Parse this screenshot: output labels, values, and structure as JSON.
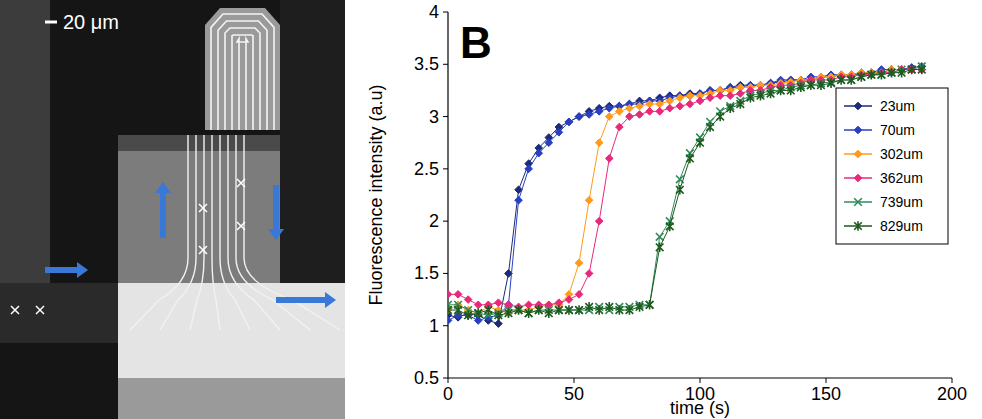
{
  "image_panel": {
    "scale_bar": "20 μm"
  },
  "chart_data": {
    "type": "line",
    "title": "B",
    "x_label": "time (s)",
    "y_label": "Fluorescence intensity (a.u)",
    "x": [
      0,
      4,
      8,
      12,
      16,
      20,
      24,
      28,
      32,
      36,
      40,
      44,
      48,
      52,
      56,
      60,
      64,
      68,
      72,
      76,
      80,
      84,
      88,
      92,
      96,
      100,
      104,
      108,
      112,
      116,
      120,
      124,
      128,
      132,
      136,
      140,
      144,
      148,
      152,
      156,
      160,
      164,
      168,
      172,
      176,
      180,
      184,
      188
    ],
    "xlim": [
      0,
      200
    ],
    "xticks": [
      0,
      50,
      100,
      150,
      200
    ],
    "ylim": [
      0.5,
      4
    ],
    "yticks": [
      0.5,
      1,
      1.5,
      2,
      2.5,
      3,
      3.5,
      4
    ],
    "grid": false,
    "legend": "upper right",
    "series": [
      {
        "name": "23um",
        "color": "#1b2a7a",
        "marker": "diamond",
        "line_style": "solid",
        "values": [
          1.1,
          1.08,
          1.12,
          1.1,
          1.05,
          1.02,
          1.5,
          2.3,
          2.55,
          2.7,
          2.8,
          2.9,
          2.95,
          3,
          3.05,
          3.08,
          3.1,
          3.1,
          3.12,
          3.15,
          3.15,
          3.18,
          3.2,
          3.2,
          3.22,
          3.22,
          3.25,
          3.25,
          3.28,
          3.3,
          3.3,
          3.3,
          3.32,
          3.33,
          3.35,
          3.35,
          3.35,
          3.38,
          3.38,
          3.4,
          3.4,
          3.4,
          3.42,
          3.42,
          3.45,
          3.45,
          3.45,
          3.45
        ]
      },
      {
        "name": "70um",
        "color": "#2840c0",
        "marker": "diamond",
        "line_style": "solid",
        "values": [
          1.05,
          1.1,
          1.1,
          1.05,
          1.08,
          1.1,
          1.2,
          2.2,
          2.5,
          2.65,
          2.75,
          2.85,
          2.95,
          3,
          3.02,
          3.05,
          3.08,
          3.1,
          3.12,
          3.12,
          3.15,
          3.15,
          3.18,
          3.2,
          3.2,
          3.22,
          3.25,
          3.25,
          3.28,
          3.28,
          3.3,
          3.3,
          3.32,
          3.35,
          3.35,
          3.35,
          3.38,
          3.38,
          3.4,
          3.4,
          3.4,
          3.42,
          3.42,
          3.45,
          3.45,
          3.45,
          3.47,
          3.48
        ]
      },
      {
        "name": "302um",
        "color": "#ff9a1a",
        "marker": "diamond",
        "line_style": "solid",
        "values": [
          1.15,
          1.2,
          1.15,
          1.12,
          1.18,
          1.15,
          1.12,
          1.15,
          1.15,
          1.18,
          1.2,
          1.2,
          1.3,
          1.6,
          2.2,
          2.75,
          3,
          3.05,
          3.08,
          3.1,
          3.12,
          3.12,
          3.15,
          3.18,
          3.2,
          3.2,
          3.22,
          3.25,
          3.25,
          3.28,
          3.28,
          3.3,
          3.3,
          3.32,
          3.33,
          3.35,
          3.35,
          3.38,
          3.38,
          3.4,
          3.4,
          3.42,
          3.42,
          3.42,
          3.45,
          3.45,
          3.45,
          3.45
        ]
      },
      {
        "name": "362um",
        "color": "#e8287a",
        "marker": "diamond",
        "line_style": "solid",
        "values": [
          1.3,
          1.3,
          1.25,
          1.2,
          1.2,
          1.22,
          1.2,
          1.18,
          1.2,
          1.2,
          1.2,
          1.22,
          1.25,
          1.3,
          1.5,
          2,
          2.6,
          2.9,
          3,
          3.02,
          3.05,
          3.05,
          3.08,
          3.1,
          3.12,
          3.15,
          3.18,
          3.2,
          3.2,
          3.22,
          3.25,
          3.25,
          3.28,
          3.3,
          3.3,
          3.32,
          3.35,
          3.35,
          3.35,
          3.38,
          3.38,
          3.4,
          3.4,
          3.42,
          3.42,
          3.45,
          3.45,
          3.45
        ]
      },
      {
        "name": "739um",
        "color": "#2f8a5a",
        "marker": "x",
        "line_style": "solid",
        "values": [
          1.2,
          1.2,
          1.15,
          1.12,
          1.1,
          1.12,
          1.15,
          1.15,
          1.12,
          1.15,
          1.15,
          1.15,
          1.15,
          1.15,
          1.15,
          1.18,
          1.15,
          1.18,
          1.18,
          1.2,
          1.2,
          1.85,
          2,
          2.4,
          2.65,
          2.8,
          2.95,
          3.05,
          3.1,
          3.15,
          3.2,
          3.22,
          3.25,
          3.25,
          3.28,
          3.3,
          3.3,
          3.32,
          3.33,
          3.35,
          3.35,
          3.38,
          3.4,
          3.4,
          3.42,
          3.45,
          3.45,
          3.48
        ]
      },
      {
        "name": "829um",
        "color": "#1e5a1e",
        "marker": "star",
        "line_style": "solid",
        "values": [
          1.15,
          1.15,
          1.1,
          1.12,
          1.15,
          1.1,
          1.12,
          1.15,
          1.12,
          1.15,
          1.12,
          1.15,
          1.15,
          1.15,
          1.18,
          1.15,
          1.18,
          1.15,
          1.15,
          1.18,
          1.2,
          1.75,
          1.95,
          2.3,
          2.6,
          2.75,
          2.9,
          3,
          3.08,
          3.12,
          3.18,
          3.2,
          3.22,
          3.25,
          3.25,
          3.28,
          3.3,
          3.3,
          3.32,
          3.35,
          3.35,
          3.38,
          3.4,
          3.4,
          3.42,
          3.42,
          3.45,
          3.45
        ]
      }
    ]
  }
}
